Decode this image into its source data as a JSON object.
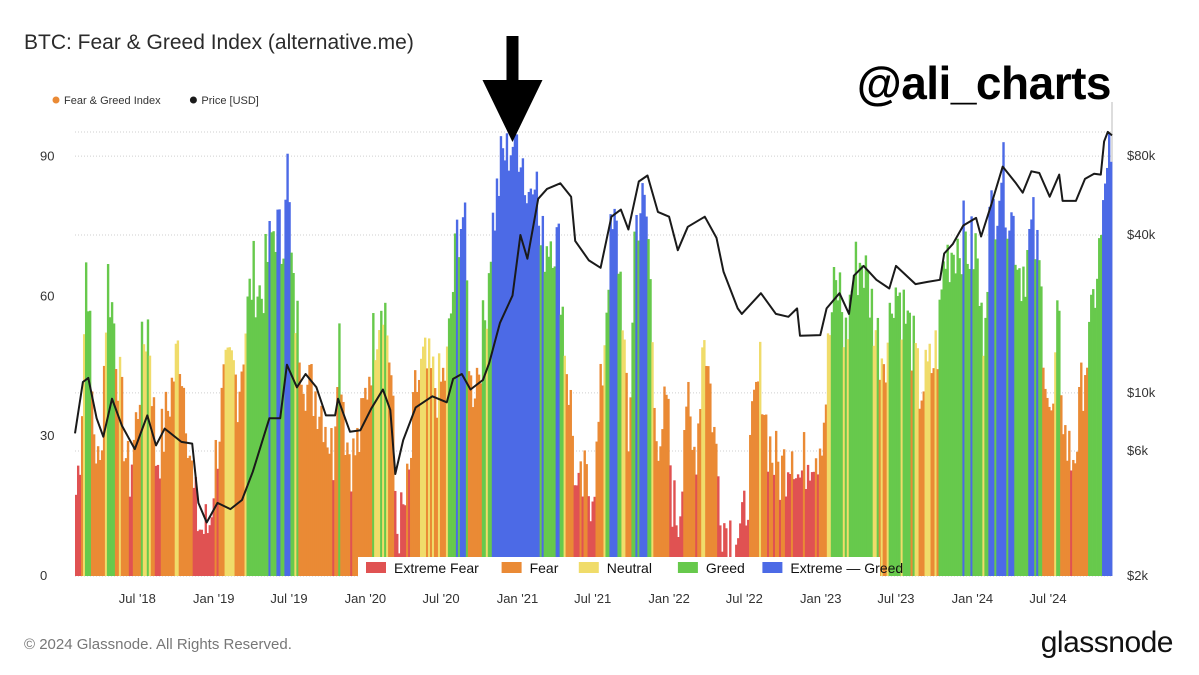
{
  "header": {
    "title": "BTC: Fear & Greed Index (alternative.me)",
    "watermark": "@ali_charts"
  },
  "footer": {
    "copyright": "© 2024 Glassnode. All Rights Reserved.",
    "brand": "glassnode"
  },
  "colors": {
    "extreme_fear": "#e05252",
    "fear": "#ea8a35",
    "neutral": "#f0dc6a",
    "greed": "#67c94c",
    "extreme_greed": "#4c6ae6",
    "price_line": "#1a1a1a",
    "grid": "#cfcfcf"
  },
  "annotation": {
    "type": "down-arrow",
    "x_date": "2020-12-20"
  },
  "chart_data": {
    "type": "bar",
    "x_range": [
      "2018-02-01",
      "2024-12-02"
    ],
    "y_left": {
      "range": [
        0,
        100
      ],
      "ticks": [
        0,
        30,
        60,
        90
      ]
    },
    "y_right": {
      "scale": "log",
      "unit": "USD",
      "range": [
        2000,
        120000
      ],
      "ticks": [
        {
          "v": 2000,
          "label": "$2k"
        },
        {
          "v": 6000,
          "label": "$6k"
        },
        {
          "v": 10000,
          "label": "$10k"
        },
        {
          "v": 40000,
          "label": "$40k"
        },
        {
          "v": 80000,
          "label": "$80k"
        }
      ]
    },
    "x_ticks": [
      {
        "date": "2018-07-01",
        "label": "Jul '18"
      },
      {
        "date": "2019-01-01",
        "label": "Jan '19"
      },
      {
        "date": "2019-07-01",
        "label": "Jul '19"
      },
      {
        "date": "2020-01-01",
        "label": "Jan '20"
      },
      {
        "date": "2020-07-01",
        "label": "Jul '20"
      },
      {
        "date": "2021-01-01",
        "label": "Jan '21"
      },
      {
        "date": "2021-07-01",
        "label": "Jul '21"
      },
      {
        "date": "2022-01-01",
        "label": "Jan '22"
      },
      {
        "date": "2022-07-01",
        "label": "Jul '22"
      },
      {
        "date": "2023-01-01",
        "label": "Jan '23"
      },
      {
        "date": "2023-07-01",
        "label": "Jul '23"
      },
      {
        "date": "2024-01-01",
        "label": "Jan '24"
      },
      {
        "date": "2024-07-01",
        "label": "Jul '24"
      }
    ],
    "legend": [
      {
        "name": "Fear & Greed Index",
        "color": "#ea8a35"
      },
      {
        "name": "Price [USD]",
        "color": "#1a1a1a"
      }
    ],
    "zones": [
      {
        "name": "Extreme Fear",
        "color": "#e05252",
        "max": 24
      },
      {
        "name": "Fear",
        "color": "#ea8a35",
        "max": 46
      },
      {
        "name": "Neutral",
        "color": "#f0dc6a",
        "max": 54
      },
      {
        "name": "Greed",
        "color": "#67c94c",
        "max": 74
      },
      {
        "name": "Extreme — Greed",
        "color": "#4c6ae6",
        "max": 100
      }
    ],
    "fear_greed": [
      [
        "2018-02-01",
        15
      ],
      [
        "2018-02-15",
        30
      ],
      [
        "2018-03-01",
        72
      ],
      [
        "2018-03-15",
        35
      ],
      [
        "2018-04-01",
        20
      ],
      [
        "2018-04-20",
        65
      ],
      [
        "2018-05-05",
        55
      ],
      [
        "2018-05-25",
        35
      ],
      [
        "2018-06-10",
        20
      ],
      [
        "2018-06-25",
        30
      ],
      [
        "2018-07-15",
        50
      ],
      [
        "2018-07-28",
        55
      ],
      [
        "2018-08-15",
        25
      ],
      [
        "2018-09-01",
        30
      ],
      [
        "2018-09-20",
        40
      ],
      [
        "2018-10-10",
        50
      ],
      [
        "2018-10-28",
        35
      ],
      [
        "2018-11-15",
        15
      ],
      [
        "2018-12-01",
        10
      ],
      [
        "2018-12-20",
        10
      ],
      [
        "2019-01-05",
        25
      ],
      [
        "2019-01-25",
        40
      ],
      [
        "2019-02-15",
        45
      ],
      [
        "2019-03-01",
        40
      ],
      [
        "2019-03-20",
        55
      ],
      [
        "2019-04-05",
        65
      ],
      [
        "2019-04-25",
        60
      ],
      [
        "2019-05-10",
        68
      ],
      [
        "2019-05-28",
        76
      ],
      [
        "2019-06-15",
        70
      ],
      [
        "2019-06-25",
        92
      ],
      [
        "2019-07-10",
        60
      ],
      [
        "2019-07-28",
        50
      ],
      [
        "2019-08-15",
        40
      ],
      [
        "2019-09-01",
        40
      ],
      [
        "2019-09-25",
        35
      ],
      [
        "2019-10-15",
        25
      ],
      [
        "2019-10-28",
        55
      ],
      [
        "2019-11-15",
        30
      ],
      [
        "2019-12-01",
        25
      ],
      [
        "2019-12-20",
        30
      ],
      [
        "2020-01-10",
        45
      ],
      [
        "2020-01-28",
        55
      ],
      [
        "2020-02-12",
        62
      ],
      [
        "2020-02-25",
        50
      ],
      [
        "2020-03-05",
        40
      ],
      [
        "2020-03-15",
        10
      ],
      [
        "2020-03-30",
        12
      ],
      [
        "2020-04-15",
        20
      ],
      [
        "2020-05-01",
        40
      ],
      [
        "2020-05-20",
        45
      ],
      [
        "2020-06-10",
        42
      ],
      [
        "2020-06-28",
        40
      ],
      [
        "2020-07-15",
        45
      ],
      [
        "2020-07-28",
        60
      ],
      [
        "2020-08-10",
        75
      ],
      [
        "2020-08-25",
        78
      ],
      [
        "2020-09-10",
        40
      ],
      [
        "2020-09-28",
        45
      ],
      [
        "2020-10-15",
        55
      ],
      [
        "2020-10-28",
        72
      ],
      [
        "2020-11-10",
        80
      ],
      [
        "2020-11-25",
        90
      ],
      [
        "2020-12-10",
        92
      ],
      [
        "2020-12-25",
        94
      ],
      [
        "2021-01-10",
        93
      ],
      [
        "2021-01-25",
        80
      ],
      [
        "2021-02-10",
        92
      ],
      [
        "2021-02-25",
        70
      ],
      [
        "2021-03-10",
        72
      ],
      [
        "2021-03-25",
        74
      ],
      [
        "2021-04-10",
        70
      ],
      [
        "2021-04-25",
        50
      ],
      [
        "2021-05-10",
        35
      ],
      [
        "2021-05-25",
        15
      ],
      [
        "2021-06-10",
        20
      ],
      [
        "2021-06-25",
        18
      ],
      [
        "2021-07-10",
        25
      ],
      [
        "2021-07-25",
        45
      ],
      [
        "2021-08-10",
        70
      ],
      [
        "2021-08-25",
        75
      ],
      [
        "2021-09-10",
        60
      ],
      [
        "2021-09-25",
        25
      ],
      [
        "2021-10-10",
        75
      ],
      [
        "2021-10-25",
        80
      ],
      [
        "2021-11-10",
        76
      ],
      [
        "2021-11-25",
        45
      ],
      [
        "2021-12-10",
        20
      ],
      [
        "2021-12-25",
        40
      ],
      [
        "2022-01-10",
        15
      ],
      [
        "2022-01-25",
        12
      ],
      [
        "2022-02-10",
        40
      ],
      [
        "2022-02-25",
        25
      ],
      [
        "2022-03-10",
        30
      ],
      [
        "2022-03-25",
        55
      ],
      [
        "2022-04-10",
        40
      ],
      [
        "2022-04-25",
        25
      ],
      [
        "2022-05-10",
        12
      ],
      [
        "2022-05-25",
        10
      ],
      [
        "2022-06-10",
        10
      ],
      [
        "2022-06-25",
        8
      ],
      [
        "2022-07-10",
        20
      ],
      [
        "2022-07-25",
        35
      ],
      [
        "2022-08-10",
        45
      ],
      [
        "2022-08-25",
        30
      ],
      [
        "2022-09-10",
        25
      ],
      [
        "2022-09-25",
        22
      ],
      [
        "2022-10-10",
        25
      ],
      [
        "2022-10-25",
        30
      ],
      [
        "2022-11-10",
        20
      ],
      [
        "2022-11-25",
        25
      ],
      [
        "2022-12-10",
        28
      ],
      [
        "2022-12-25",
        28
      ],
      [
        "2023-01-10",
        35
      ],
      [
        "2023-01-20",
        50
      ],
      [
        "2023-02-01",
        60
      ],
      [
        "2023-02-15",
        62
      ],
      [
        "2023-03-01",
        50
      ],
      [
        "2023-03-20",
        65
      ],
      [
        "2023-04-10",
        68
      ],
      [
        "2023-04-25",
        62
      ],
      [
        "2023-05-10",
        55
      ],
      [
        "2023-05-25",
        48
      ],
      [
        "2023-06-10",
        50
      ],
      [
        "2023-06-25",
        63
      ],
      [
        "2023-07-10",
        60
      ],
      [
        "2023-07-25",
        55
      ],
      [
        "2023-08-10",
        50
      ],
      [
        "2023-08-25",
        40
      ],
      [
        "2023-09-10",
        42
      ],
      [
        "2023-09-25",
        45
      ],
      [
        "2023-10-10",
        50
      ],
      [
        "2023-10-25",
        68
      ],
      [
        "2023-11-10",
        70
      ],
      [
        "2023-11-25",
        72
      ],
      [
        "2023-12-10",
        73
      ],
      [
        "2023-12-25",
        70
      ],
      [
        "2024-01-10",
        70
      ],
      [
        "2024-01-25",
        50
      ],
      [
        "2024-02-10",
        75
      ],
      [
        "2024-02-25",
        80
      ],
      [
        "2024-03-10",
        88
      ],
      [
        "2024-03-25",
        80
      ],
      [
        "2024-04-10",
        75
      ],
      [
        "2024-04-25",
        65
      ],
      [
        "2024-05-10",
        68
      ],
      [
        "2024-05-25",
        75
      ],
      [
        "2024-06-10",
        65
      ],
      [
        "2024-06-25",
        45
      ],
      [
        "2024-07-10",
        30
      ],
      [
        "2024-07-25",
        55
      ],
      [
        "2024-08-10",
        30
      ],
      [
        "2024-08-25",
        25
      ],
      [
        "2024-09-10",
        30
      ],
      [
        "2024-09-25",
        45
      ],
      [
        "2024-10-10",
        50
      ],
      [
        "2024-10-25",
        65
      ],
      [
        "2024-11-10",
        75
      ],
      [
        "2024-11-22",
        94
      ],
      [
        "2024-12-02",
        82
      ]
    ],
    "price": [
      [
        "2018-02-01",
        7000
      ],
      [
        "2018-02-20",
        11000
      ],
      [
        "2018-03-05",
        11400
      ],
      [
        "2018-03-25",
        8000
      ],
      [
        "2018-04-10",
        6800
      ],
      [
        "2018-05-01",
        9500
      ],
      [
        "2018-05-25",
        7500
      ],
      [
        "2018-06-25",
        6100
      ],
      [
        "2018-07-25",
        8200
      ],
      [
        "2018-08-15",
        6300
      ],
      [
        "2018-09-05",
        7300
      ],
      [
        "2018-10-15",
        6500
      ],
      [
        "2018-11-10",
        6400
      ],
      [
        "2018-11-25",
        3800
      ],
      [
        "2018-12-15",
        3200
      ],
      [
        "2019-01-10",
        3800
      ],
      [
        "2019-02-10",
        3600
      ],
      [
        "2019-03-10",
        3900
      ],
      [
        "2019-04-05",
        5000
      ],
      [
        "2019-05-15",
        8000
      ],
      [
        "2019-06-10",
        8000
      ],
      [
        "2019-06-26",
        12800
      ],
      [
        "2019-07-20",
        10500
      ],
      [
        "2019-08-10",
        11800
      ],
      [
        "2019-09-05",
        10500
      ],
      [
        "2019-09-28",
        8200
      ],
      [
        "2019-10-20",
        8200
      ],
      [
        "2019-10-27",
        9500
      ],
      [
        "2019-11-25",
        7100
      ],
      [
        "2019-12-20",
        7200
      ],
      [
        "2020-01-15",
        8700
      ],
      [
        "2020-02-12",
        10300
      ],
      [
        "2020-03-01",
        8600
      ],
      [
        "2020-03-13",
        4900
      ],
      [
        "2020-04-01",
        6600
      ],
      [
        "2020-05-01",
        8800
      ],
      [
        "2020-06-10",
        9700
      ],
      [
        "2020-07-15",
        9200
      ],
      [
        "2020-07-30",
        11300
      ],
      [
        "2020-08-20",
        11800
      ],
      [
        "2020-09-10",
        10300
      ],
      [
        "2020-10-10",
        11200
      ],
      [
        "2020-10-25",
        13000
      ],
      [
        "2020-11-20",
        18500
      ],
      [
        "2020-12-20",
        23500
      ],
      [
        "2021-01-08",
        40000
      ],
      [
        "2021-01-25",
        32500
      ],
      [
        "2021-02-20",
        55000
      ],
      [
        "2021-03-13",
        60000
      ],
      [
        "2021-04-14",
        63000
      ],
      [
        "2021-05-10",
        56000
      ],
      [
        "2021-05-20",
        38000
      ],
      [
        "2021-06-22",
        32000
      ],
      [
        "2021-07-20",
        30000
      ],
      [
        "2021-08-15",
        47000
      ],
      [
        "2021-09-07",
        50000
      ],
      [
        "2021-09-25",
        42000
      ],
      [
        "2021-10-20",
        64000
      ],
      [
        "2021-11-10",
        67500
      ],
      [
        "2021-12-05",
        49000
      ],
      [
        "2022-01-01",
        47000
      ],
      [
        "2022-01-22",
        35000
      ],
      [
        "2022-02-15",
        43000
      ],
      [
        "2022-03-28",
        47000
      ],
      [
        "2022-04-25",
        39000
      ],
      [
        "2022-05-12",
        29000
      ],
      [
        "2022-06-15",
        21000
      ],
      [
        "2022-06-25",
        20000
      ],
      [
        "2022-08-10",
        24000
      ],
      [
        "2022-09-15",
        20000
      ],
      [
        "2022-10-15",
        19500
      ],
      [
        "2022-11-05",
        21000
      ],
      [
        "2022-11-12",
        16500
      ],
      [
        "2022-12-31",
        16600
      ],
      [
        "2023-01-15",
        21000
      ],
      [
        "2023-02-15",
        24000
      ],
      [
        "2023-03-10",
        20000
      ],
      [
        "2023-03-22",
        28000
      ],
      [
        "2023-04-14",
        30500
      ],
      [
        "2023-05-15",
        27000
      ],
      [
        "2023-06-15",
        25000
      ],
      [
        "2023-07-01",
        30500
      ],
      [
        "2023-08-17",
        26000
      ],
      [
        "2023-09-15",
        26500
      ],
      [
        "2023-10-15",
        27000
      ],
      [
        "2023-10-25",
        34000
      ],
      [
        "2023-11-15",
        37000
      ],
      [
        "2023-12-10",
        43500
      ],
      [
        "2024-01-10",
        46500
      ],
      [
        "2024-01-22",
        39500
      ],
      [
        "2024-02-15",
        52000
      ],
      [
        "2024-03-14",
        73000
      ],
      [
        "2024-04-15",
        63000
      ],
      [
        "2024-05-01",
        58000
      ],
      [
        "2024-05-22",
        70000
      ],
      [
        "2024-06-10",
        69000
      ],
      [
        "2024-07-05",
        56000
      ],
      [
        "2024-07-28",
        68000
      ],
      [
        "2024-08-05",
        54000
      ],
      [
        "2024-09-06",
        54000
      ],
      [
        "2024-09-28",
        65500
      ],
      [
        "2024-10-20",
        68500
      ],
      [
        "2024-11-05",
        68000
      ],
      [
        "2024-11-13",
        91000
      ],
      [
        "2024-11-22",
        99000
      ],
      [
        "2024-12-02",
        96000
      ]
    ]
  }
}
